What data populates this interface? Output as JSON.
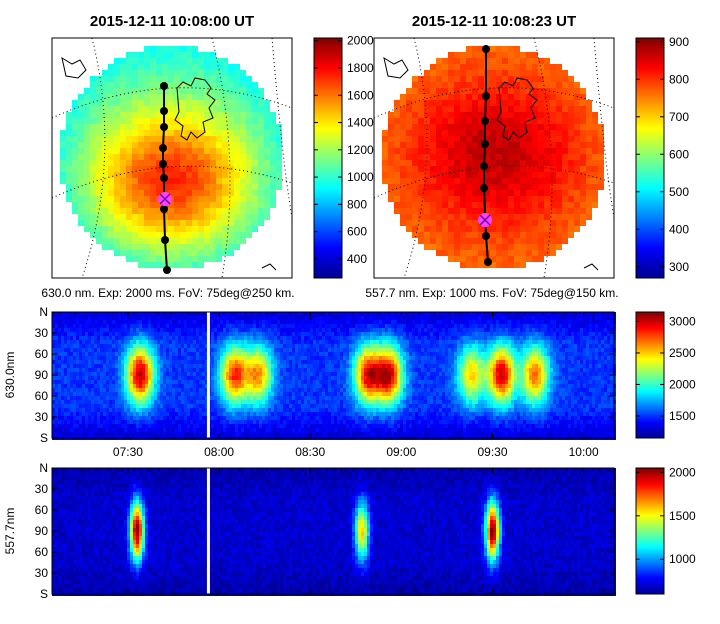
{
  "colormap": [
    "#00008f",
    "#0000ff",
    "#0080ff",
    "#00ffff",
    "#80ff80",
    "#ffff00",
    "#ff8000",
    "#ff0000",
    "#800000"
  ],
  "all_sky": [
    {
      "title": "2015-12-11 10:08:00 UT",
      "caption": "630.0 nm. Exp: 2000 ms. FoV: 75deg@250 km.",
      "colorbar": {
        "ticks": [
          "2000",
          "1800",
          "1600",
          "1400",
          "1200",
          "1000",
          "800",
          "600",
          "400"
        ],
        "range": [
          260,
          2020
        ]
      },
      "background_value": 1150,
      "glow_value": 1750,
      "meridian_markers": 7,
      "current_position_marker": "magenta-cross"
    },
    {
      "title": "2015-12-11 10:08:23 UT",
      "caption": "557.7 nm. Exp: 1000 ms. FoV: 75deg@150 km.",
      "colorbar": {
        "ticks": [
          "900",
          "800",
          "700",
          "600",
          "500",
          "400",
          "300"
        ],
        "range": [
          270,
          910
        ]
      },
      "background_value": 790,
      "glow_value": 870,
      "meridian_markers": 8,
      "current_position_marker": "magenta-cross"
    }
  ],
  "chart_data": [
    {
      "type": "heatmap",
      "title": "",
      "ylabel": "630.0nm",
      "yticks": [
        "N",
        "30",
        "60",
        "90",
        "60",
        "30",
        "S"
      ],
      "xticks": [
        "07:30",
        "08:00",
        "08:30",
        "09:00",
        "09:30",
        "10:00"
      ],
      "x_range": [
        "07:05",
        "10:10"
      ],
      "colorbar": {
        "ticks": [
          "3000",
          "2500",
          "2000",
          "1500"
        ],
        "range": [
          1150,
          3150
        ]
      },
      "background_value": 1500,
      "data_gap_at": "07:56",
      "auroral_events": [
        {
          "time": "07:34",
          "peak": 3050
        },
        {
          "time": "08:05",
          "peak": 2800
        },
        {
          "time": "08:13",
          "peak": 2600
        },
        {
          "time": "08:49",
          "peak": 2900
        },
        {
          "time": "08:56",
          "peak": 2950
        },
        {
          "time": "09:23",
          "peak": 2500
        },
        {
          "time": "09:33",
          "peak": 3000
        },
        {
          "time": "09:44",
          "peak": 2700
        }
      ]
    },
    {
      "type": "heatmap",
      "title": "",
      "ylabel": "557.7nm",
      "yticks": [
        "N",
        "30",
        "60",
        "90",
        "60",
        "30",
        "S"
      ],
      "xticks": [
        "07:30",
        "08:00",
        "08:30",
        "09:00",
        "09:30",
        "10:00"
      ],
      "x_range": [
        "07:05",
        "10:10"
      ],
      "colorbar": {
        "ticks": [
          "2000",
          "1500",
          "1000"
        ],
        "range": [
          600,
          2050
        ]
      },
      "background_value": 700,
      "data_gap_at": "07:56",
      "auroral_events": [
        {
          "time": "07:33",
          "peak": 2050
        },
        {
          "time": "08:47",
          "peak": 1600
        },
        {
          "time": "09:30",
          "peak": 2050
        }
      ]
    }
  ]
}
